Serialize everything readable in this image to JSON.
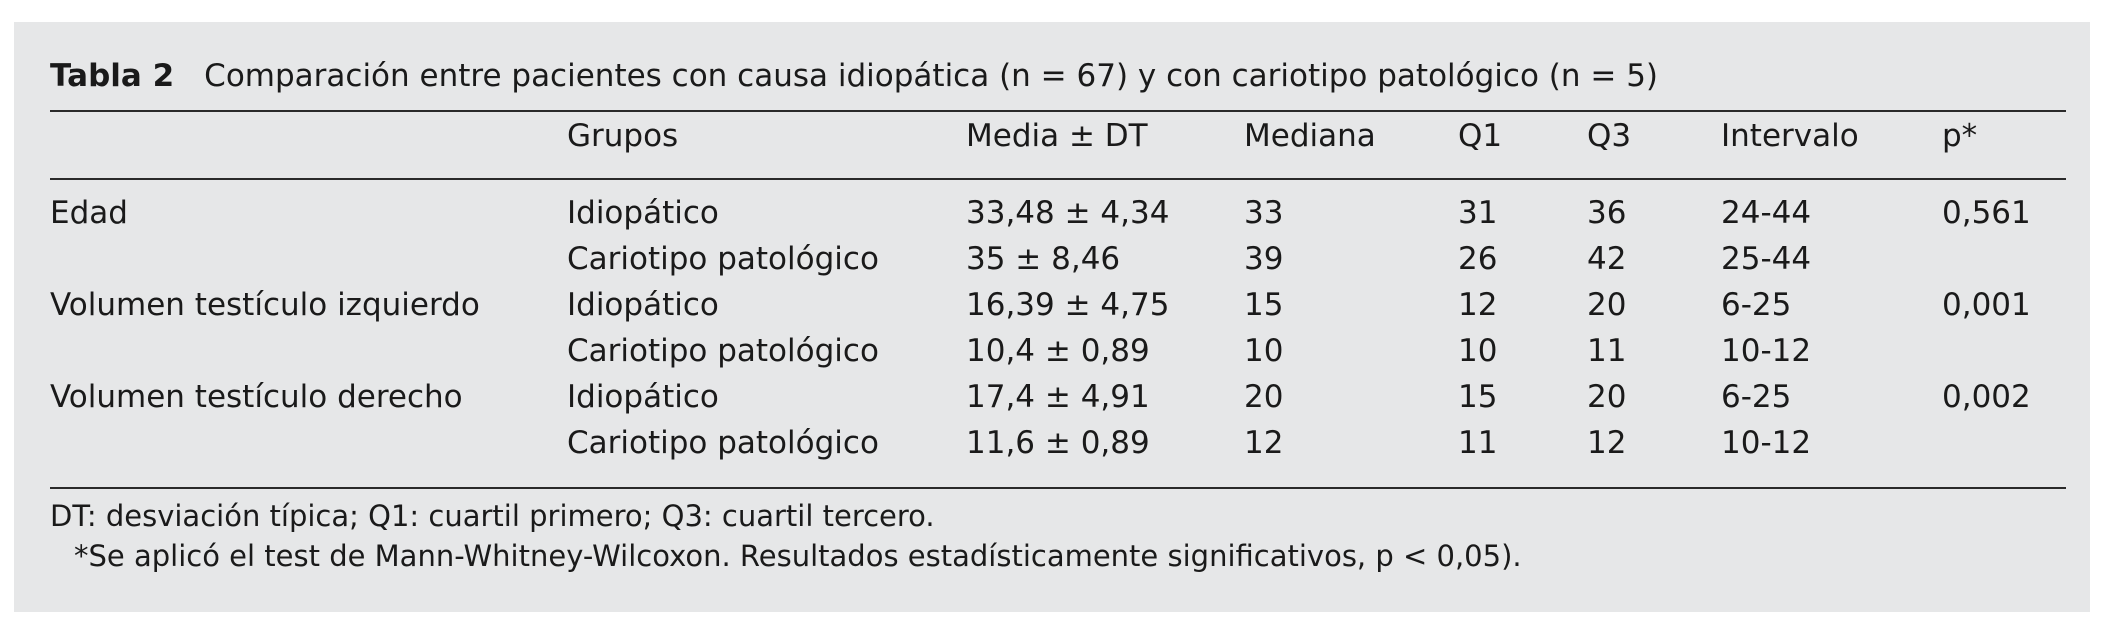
{
  "table": {
    "label": "Tabla 2",
    "title": "Comparación entre pacientes con causa idiopática (n = 67) y con cariotipo patológico (n = 5)",
    "headers": {
      "variable": "",
      "grupos": "Grupos",
      "media": "Media ± DT",
      "mediana": "Mediana",
      "q1": "Q1",
      "q3": "Q3",
      "intervalo": "Intervalo",
      "p": "p*"
    },
    "rows": [
      {
        "variable": "Edad",
        "grupo": "Idiopático",
        "media": "33,48 ± 4,34",
        "mediana": "33",
        "q1": "31",
        "q3": "36",
        "intervalo": "24-44",
        "p": "0,561"
      },
      {
        "variable": "",
        "grupo": "Cariotipo patológico",
        "media": "35 ± 8,46",
        "mediana": "39",
        "q1": "26",
        "q3": "42",
        "intervalo": "25-44",
        "p": ""
      },
      {
        "variable": "Volumen testículo izquierdo",
        "grupo": "Idiopático",
        "media": "16,39 ± 4,75",
        "mediana": "15",
        "q1": "12",
        "q3": "20",
        "intervalo": "6-25",
        "p": "0,001"
      },
      {
        "variable": "",
        "grupo": "Cariotipo patológico",
        "media": "10,4 ± 0,89",
        "mediana": "10",
        "q1": "10",
        "q3": "11",
        "intervalo": "10-12",
        "p": ""
      },
      {
        "variable": "Volumen testículo derecho",
        "grupo": "Idiopático",
        "media": "17,4 ± 4,91",
        "mediana": "20",
        "q1": "15",
        "q3": "20",
        "intervalo": "6-25",
        "p": "0,002"
      },
      {
        "variable": "",
        "grupo": "Cariotipo patológico",
        "media": "11,6 ± 0,89",
        "mediana": "12",
        "q1": "11",
        "q3": "12",
        "intervalo": "10-12",
        "p": ""
      }
    ],
    "footnotes": [
      "DT: desviación típica; Q1: cuartil primero; Q3: cuartil tercero.",
      "*Se aplicó el test de Mann-Whitney-Wilcoxon. Resultados estadísticamente significativos, p < 0,05)."
    ]
  }
}
